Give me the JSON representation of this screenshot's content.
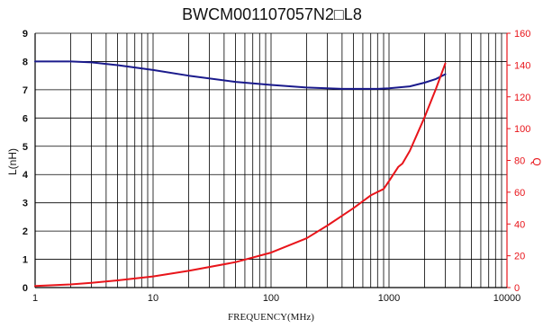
{
  "chart_data": {
    "type": "line",
    "title": "BWCM001107057N2□L8",
    "xlabel": "FREQUENCY(MHz)",
    "ylabel_left": "L(nH)",
    "ylabel_right": "Q",
    "x_scale": "log",
    "xlim": [
      1,
      10000
    ],
    "ylim_left": [
      0,
      9
    ],
    "ylim_right": [
      0,
      160
    ],
    "grid": true,
    "x_ticks": [
      1,
      10,
      100,
      1000,
      10000
    ],
    "x_tick_labels": [
      "1",
      "10",
      "100",
      "1000",
      "10000"
    ],
    "y_left_ticks": [
      0,
      1,
      2,
      3,
      4,
      5,
      6,
      7,
      8,
      9
    ],
    "y_right_ticks": [
      0,
      20,
      40,
      60,
      80,
      100,
      120,
      140,
      160
    ],
    "series": [
      {
        "axis": "left",
        "color": "#1a1a8c",
        "x": [
          1,
          2,
          3,
          5,
          10,
          20,
          50,
          100,
          200,
          400,
          600,
          800,
          1000,
          1500,
          2000,
          2500,
          3000
        ],
        "y": [
          8.0,
          8.0,
          7.97,
          7.87,
          7.7,
          7.5,
          7.28,
          7.17,
          7.08,
          7.03,
          7.03,
          7.03,
          7.05,
          7.12,
          7.25,
          7.38,
          7.55
        ]
      },
      {
        "axis": "right",
        "color": "#e8141a",
        "x": [
          1,
          2,
          3,
          5,
          10,
          20,
          50,
          100,
          200,
          300,
          500,
          700,
          900,
          1000,
          1200,
          1300,
          1500,
          2000,
          2500,
          3000
        ],
        "y": [
          1,
          2,
          3,
          4.5,
          7,
          10.5,
          16,
          22,
          31,
          39,
          50,
          58,
          62,
          67,
          76,
          78,
          86,
          107,
          125,
          141
        ]
      }
    ]
  }
}
